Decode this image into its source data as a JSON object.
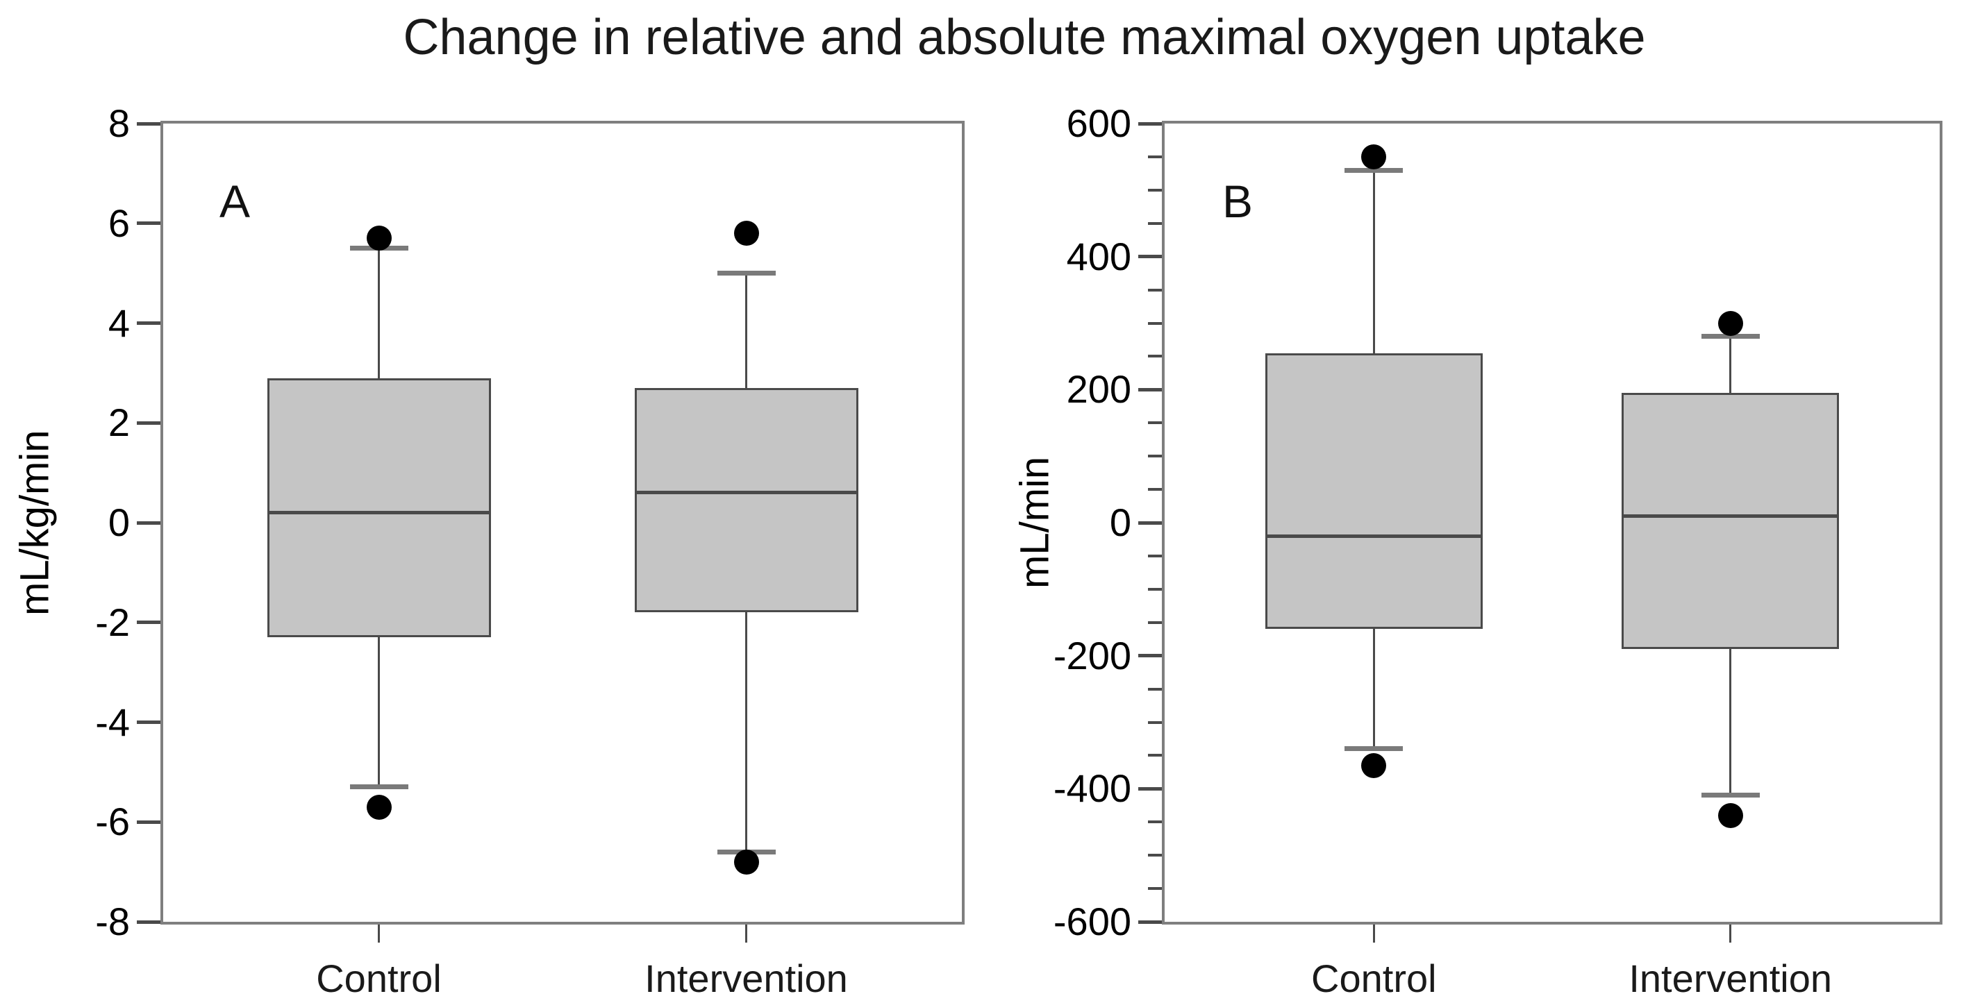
{
  "title": "Change in relative and absolute maximal oxygen uptake",
  "colors": {
    "background": "#ffffff",
    "frame": "#7f7f7f",
    "tick": "#4a4a4a",
    "box_fill": "#c5c5c5",
    "box_border": "#4a4a4a",
    "median_line": "#4a4a4a",
    "whisker_line": "#4a4a4a",
    "whisker_cap": "#7a7a7a",
    "outlier_dot": "#000000",
    "text": "#000000"
  },
  "chart_data": [
    {
      "type": "boxplot",
      "panel": "A",
      "ylabel": "mL/kg/min",
      "ylim": [
        -8,
        8
      ],
      "yticks": [
        8,
        6,
        4,
        2,
        0,
        -2,
        -4,
        -6,
        -8
      ],
      "minor_tick_step": null,
      "grid": false,
      "categories": [
        "Control",
        "Intervention"
      ],
      "boxes": [
        {
          "category": "Control",
          "whisker_low": -5.3,
          "q1": -2.3,
          "median": 0.2,
          "q3": 2.9,
          "whisker_high": 5.5,
          "outliers": [
            5.7,
            -5.7
          ]
        },
        {
          "category": "Intervention",
          "whisker_low": -6.6,
          "q1": -1.8,
          "median": 0.6,
          "q3": 2.7,
          "whisker_high": 5.0,
          "outliers": [
            5.8,
            -6.8
          ]
        }
      ]
    },
    {
      "type": "boxplot",
      "panel": "B",
      "ylabel": "mL/min",
      "ylim": [
        -600,
        600
      ],
      "yticks": [
        600,
        400,
        200,
        0,
        -200,
        -400,
        -600
      ],
      "minor_tick_step": 50,
      "grid": false,
      "categories": [
        "Control",
        "Intervention"
      ],
      "boxes": [
        {
          "category": "Control",
          "whisker_low": -340,
          "q1": -160,
          "median": -20,
          "q3": 255,
          "whisker_high": 530,
          "outliers": [
            550,
            -365
          ]
        },
        {
          "category": "Intervention",
          "whisker_low": -410,
          "q1": -190,
          "median": 10,
          "q3": 195,
          "whisker_high": 280,
          "outliers": [
            300,
            -440
          ]
        }
      ]
    }
  ]
}
